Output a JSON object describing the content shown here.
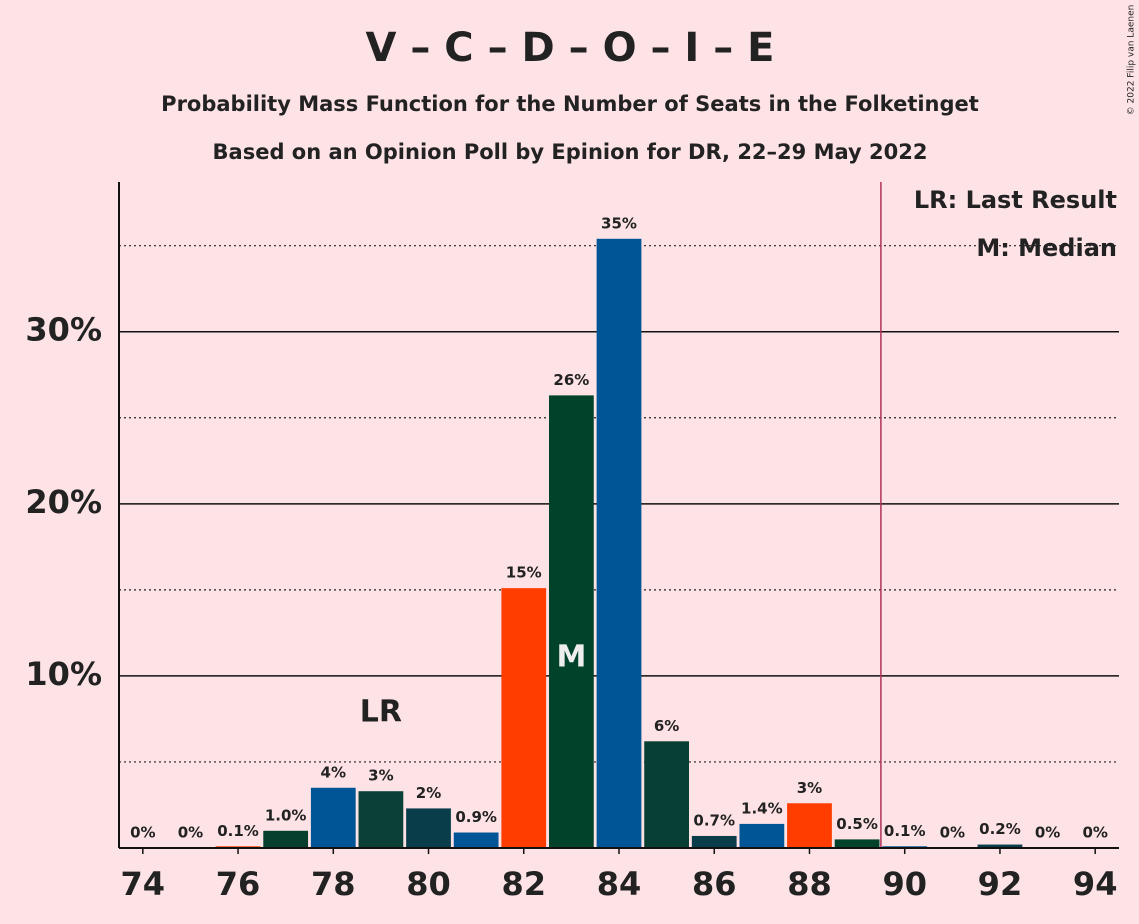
{
  "chart_data": {
    "type": "bar",
    "title": "V – C – D – O – I – E",
    "subtitle": "Probability Mass Function for the Number of Seats in the Folketinget",
    "subtitle2": "Based on an Opinion Poll by Epinion for DR, 22–29 May 2022",
    "copyright": "© 2022 Filip van Laenen",
    "x": [
      74,
      75,
      76,
      77,
      78,
      79,
      80,
      81,
      82,
      83,
      84,
      85,
      86,
      87,
      88,
      89,
      90,
      91,
      92,
      93,
      94
    ],
    "values": [
      0,
      0,
      0.1,
      1.0,
      3.5,
      3.3,
      2.3,
      0.9,
      15.1,
      26.3,
      35.4,
      6.2,
      0.7,
      1.4,
      2.6,
      0.5,
      0.1,
      0,
      0.2,
      0,
      0
    ],
    "value_labels": [
      "0%",
      "0%",
      "0.1%",
      "1.0%",
      "4%",
      "3%",
      "2%",
      "0.9%",
      "15%",
      "26%",
      "35%",
      "6%",
      "0.7%",
      "1.4%",
      "3%",
      "0.5%",
      "0.1%",
      "0%",
      "0.2%",
      "0%",
      "0%"
    ],
    "colors": [
      "#073f35",
      "#005596",
      "#ff3d00",
      "#073f2f",
      "#005596",
      "#0a4035",
      "#0a3d4a",
      "#005596",
      "#ff3d00",
      "#00422a",
      "#005596",
      "#073f35",
      "#0a3d4a",
      "#005596",
      "#ff3d00",
      "#00422a",
      "#005596",
      "#073f35",
      "#0a3d4a",
      "#005596",
      "#ff3d00"
    ],
    "xlim": [
      73.5,
      94.5
    ],
    "xticks": [
      74,
      76,
      78,
      80,
      82,
      84,
      86,
      88,
      90,
      92,
      94
    ],
    "ylim": [
      0,
      38.7
    ],
    "yticks": [
      {
        "value": 10,
        "label": "10%"
      },
      {
        "value": 20,
        "label": "20%"
      },
      {
        "value": 30,
        "label": "30%"
      }
    ],
    "minor_yticks": [
      5,
      15,
      25,
      35
    ],
    "grid": true,
    "majority_line": 89.5,
    "annotations": [
      {
        "text": "LR",
        "x": 79
      },
      {
        "text": "M",
        "x": 83
      }
    ],
    "legend_texts": [
      "LR: Last Result",
      "M: Median"
    ]
  }
}
